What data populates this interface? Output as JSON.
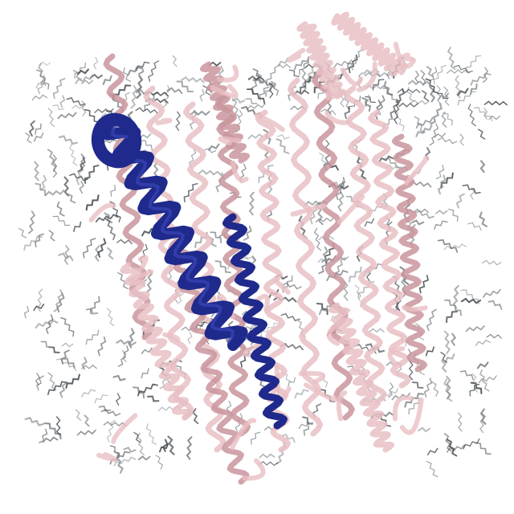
{
  "image": {
    "subject": "membrane-protein-in-lipid-bilayer",
    "colors": {
      "background": "#ffffff",
      "protein_ribbon": "#e8bfc4",
      "protein_ribbon_shade": "#c9959c",
      "highlight_helix": "#1f2a8c",
      "highlight_helix_light": "#3a46b8",
      "lipid_tail": "#8a8f93",
      "lipid_tail_dark": "#4d5256"
    }
  }
}
